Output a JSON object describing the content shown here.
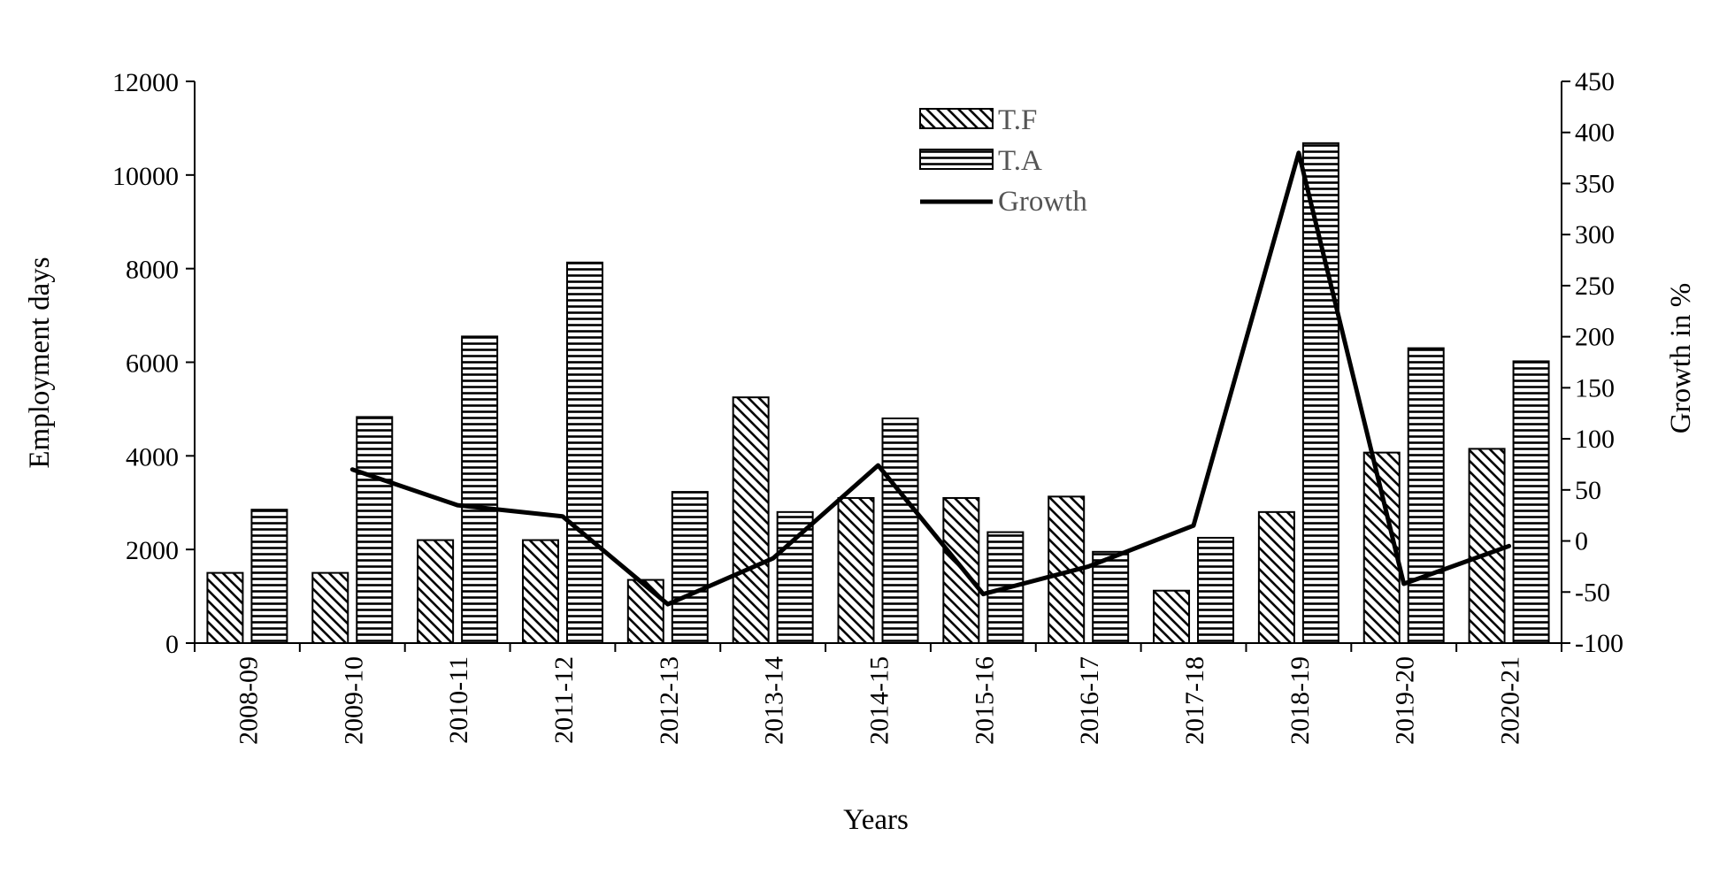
{
  "chart_data": {
    "type": "bar",
    "categories": [
      "2008-09",
      "2009-10",
      "2010-11",
      "2011-12",
      "2012-13",
      "2013-14",
      "2014-15",
      "2015-16",
      "2016-17",
      "2017-18",
      "2018-19",
      "2019-20",
      "2020-21"
    ],
    "series": [
      {
        "name": "T.F",
        "type": "bar",
        "pattern": "diagonal-hatch",
        "axis": "left",
        "values": [
          1500,
          1500,
          2200,
          2200,
          1350,
          5250,
          3100,
          3100,
          3130,
          1120,
          2800,
          4070,
          4150
        ]
      },
      {
        "name": "T.A",
        "type": "bar",
        "pattern": "horizontal-hatch",
        "axis": "left",
        "values": [
          2850,
          4830,
          6550,
          8130,
          3230,
          2800,
          4800,
          2370,
          1950,
          2250,
          10680,
          6300,
          6020
        ]
      },
      {
        "name": "Growth",
        "type": "line",
        "axis": "right",
        "values": [
          null,
          70,
          35,
          24,
          -62,
          -17,
          74,
          -52,
          -25,
          15,
          380,
          -42,
          -5
        ]
      }
    ],
    "xlabel": "Years",
    "ylabel": "Employment  days",
    "y2label": "Growth in %",
    "ylim": [
      0,
      12000
    ],
    "y2lim": [
      -100,
      450
    ],
    "yticks": [
      "0",
      "2000",
      "4000",
      "6000",
      "8000",
      "10000",
      "12000"
    ],
    "y2ticks": [
      "-100",
      "-50",
      "0",
      "50",
      "100",
      "150",
      "200",
      "250",
      "300",
      "350",
      "400",
      "450"
    ],
    "legend_position": "top-center",
    "grid": false
  }
}
